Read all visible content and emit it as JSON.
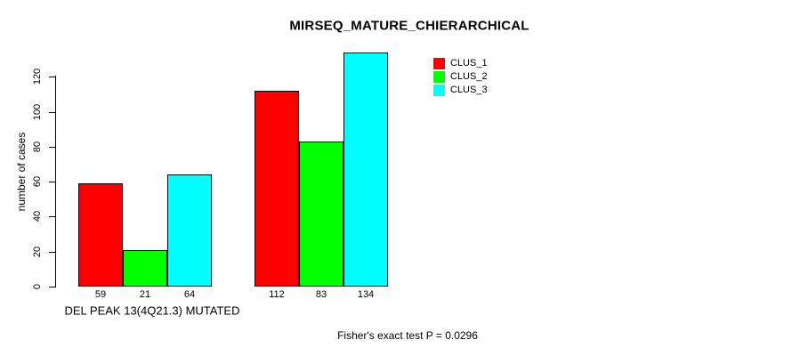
{
  "title": "MIRSEQ_MATURE_CHIERARCHICAL",
  "y_axis": {
    "label": "number of cases",
    "ticks": [
      0,
      20,
      40,
      60,
      80,
      100,
      120
    ]
  },
  "x_axis": {
    "group_label": "DEL PEAK 13(4Q21.3) MUTATED"
  },
  "legend": {
    "items": [
      {
        "label": "CLUS_1",
        "color": "#FF0000"
      },
      {
        "label": "CLUS_2",
        "color": "#00FF00"
      },
      {
        "label": "CLUS_3",
        "color": "#00FFFF"
      }
    ]
  },
  "annotation": "Fisher's exact test P = 0.0296",
  "chart_data": {
    "type": "bar",
    "title": "MIRSEQ_MATURE_CHIERARCHICAL",
    "xlabel": "",
    "ylabel": "number of cases",
    "categories": [
      "DEL PEAK 13(4Q21.3) MUTATED",
      ""
    ],
    "series": [
      {
        "name": "CLUS_1",
        "color": "#FF0000",
        "values": [
          59,
          112
        ]
      },
      {
        "name": "CLUS_2",
        "color": "#00FF00",
        "values": [
          21,
          83
        ]
      },
      {
        "name": "CLUS_3",
        "color": "#00FFFF",
        "values": [
          64,
          134
        ]
      }
    ],
    "bar_value_labels": [
      [
        59,
        21,
        64
      ],
      [
        112,
        83,
        134
      ]
    ],
    "ylim": [
      0,
      134
    ],
    "yticks": [
      0,
      20,
      40,
      60,
      80,
      100,
      120
    ],
    "grid": false,
    "legend_position": "top-right",
    "annotation": "Fisher's exact test P = 0.0296"
  }
}
